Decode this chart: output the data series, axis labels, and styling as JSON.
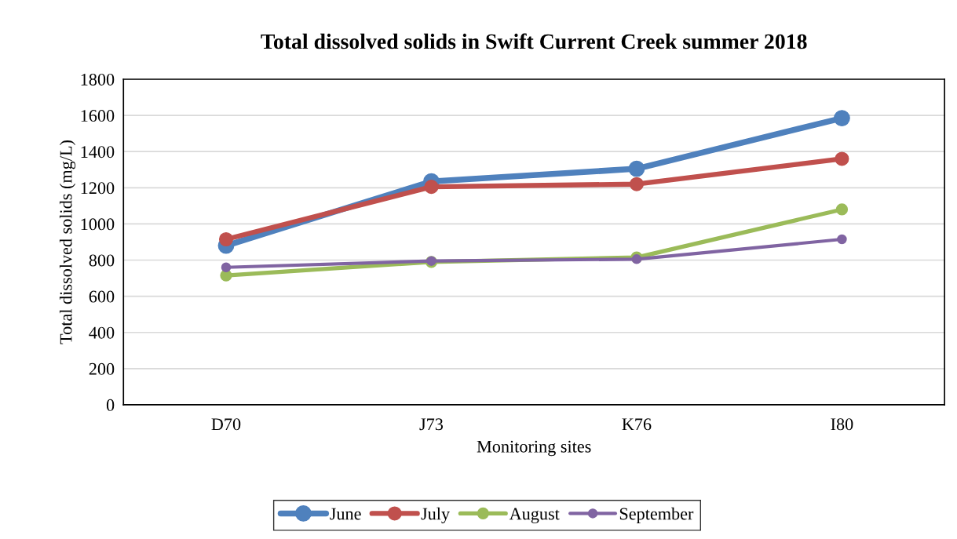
{
  "chart_data": {
    "type": "line",
    "title": "Total dissolved solids in Swift Current Creek summer 2018",
    "xlabel": "Monitoring sites",
    "ylabel": "Total dissolved solids (mg/L)",
    "categories": [
      "D70",
      "J73",
      "K76",
      "I80"
    ],
    "series": [
      {
        "name": "June",
        "color": "#4f81bd",
        "values": [
          880,
          1235,
          1305,
          1585
        ]
      },
      {
        "name": "July",
        "color": "#c0504d",
        "values": [
          915,
          1205,
          1220,
          1360
        ]
      },
      {
        "name": "August",
        "color": "#9bbb59",
        "values": [
          715,
          790,
          815,
          1080
        ]
      },
      {
        "name": "September",
        "color": "#8064a2",
        "values": [
          760,
          795,
          805,
          915
        ]
      }
    ],
    "ylim": [
      0,
      1800
    ],
    "yticks": [
      0,
      200,
      400,
      600,
      800,
      1000,
      1200,
      1400,
      1600,
      1800
    ],
    "grid": "y",
    "legend": "bottom",
    "marker": "circle",
    "line_style": "solid"
  }
}
